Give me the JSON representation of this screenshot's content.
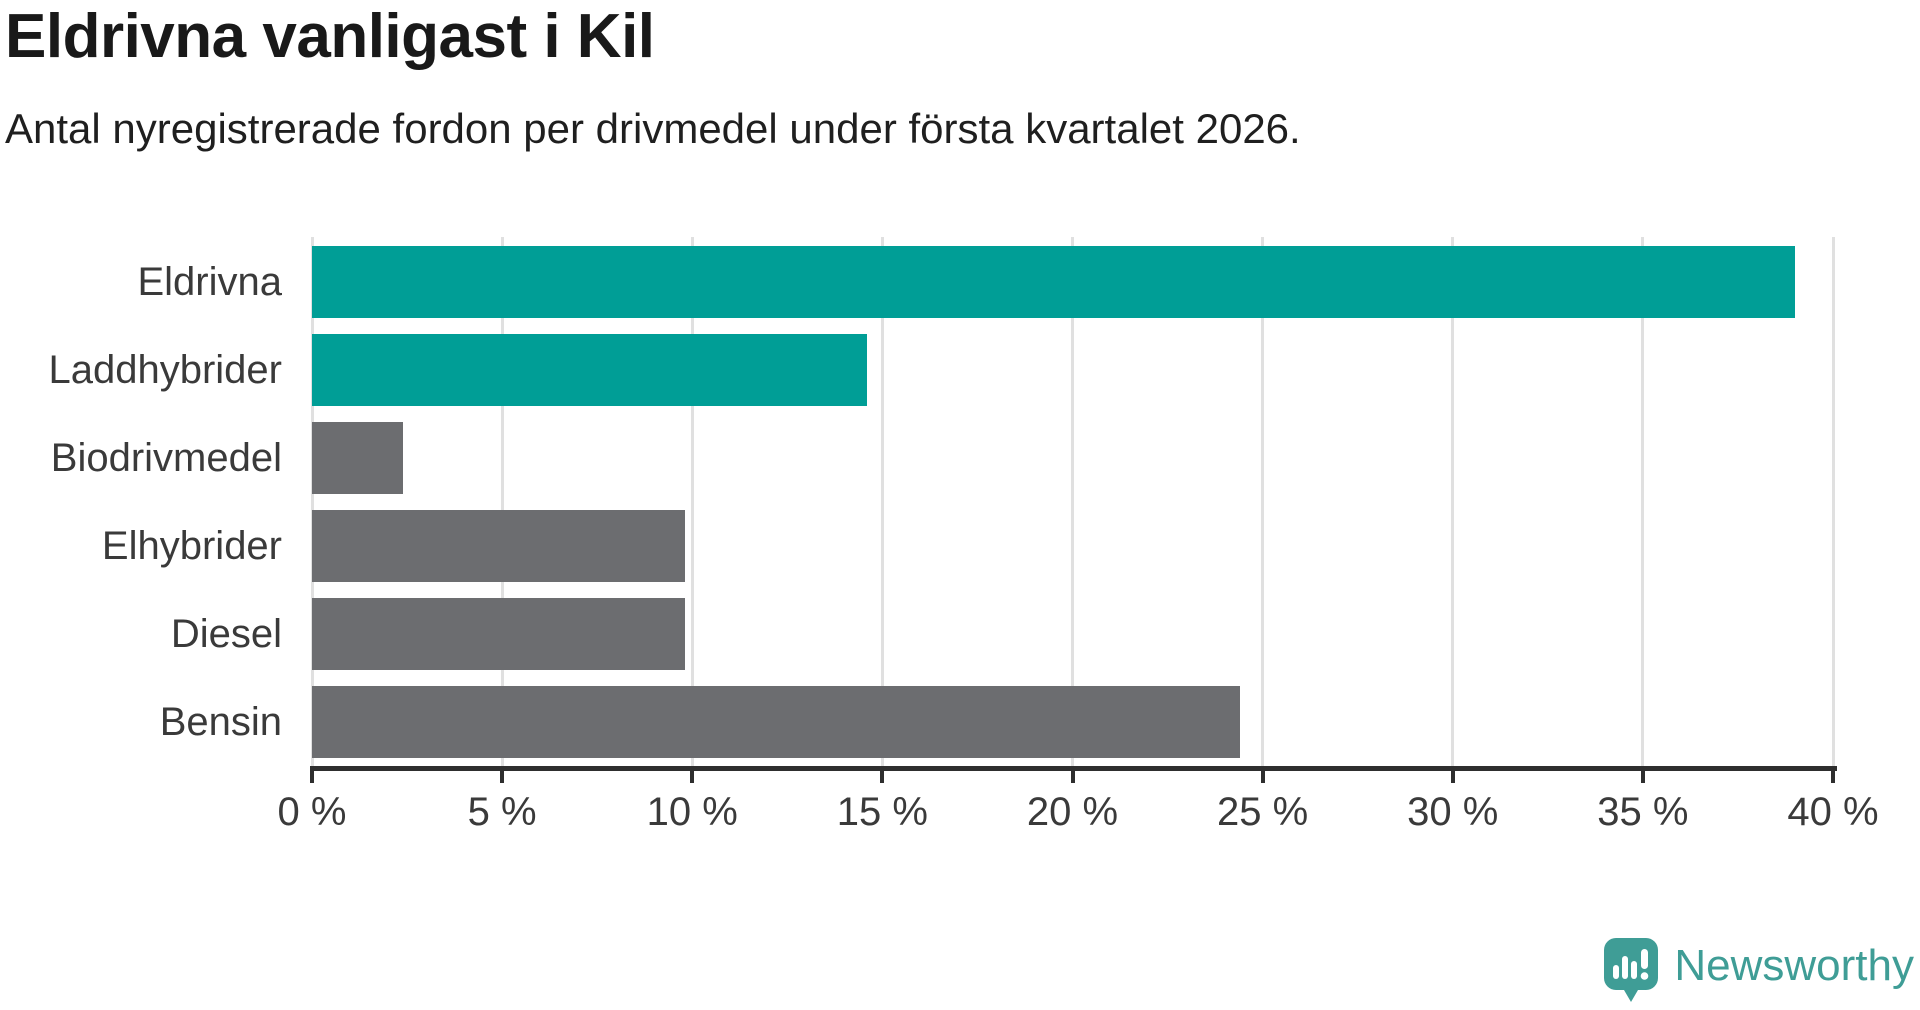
{
  "header": {
    "title": "Eldrivna vanligast i Kil",
    "subtitle": "Antal nyregistrerade fordon per drivmedel under första kvartalet 2026."
  },
  "chart_data": {
    "type": "bar",
    "orientation": "horizontal",
    "title": "Eldrivna vanligast i Kil",
    "subtitle": "Antal nyregistrerade fordon per drivmedel under första kvartalet 2026.",
    "categories": [
      "Eldrivna",
      "Laddhybrider",
      "Biodrivmedel",
      "Elhybrider",
      "Diesel",
      "Bensin"
    ],
    "values": [
      39.0,
      14.6,
      2.4,
      9.8,
      9.8,
      24.4
    ],
    "unit": "%",
    "bar_colors": [
      "#009e96",
      "#009e96",
      "#6c6d70",
      "#6c6d70",
      "#6c6d70",
      "#6c6d70"
    ],
    "xlabel": "",
    "ylabel": "",
    "xlim": [
      0,
      40
    ],
    "x_tick_step": 5,
    "x_tick_labels": [
      "0 %",
      "5 %",
      "10 %",
      "15 %",
      "20 %",
      "25 %",
      "30 %",
      "35 %",
      "40 %"
    ],
    "grid": true,
    "legend": false
  },
  "colors": {
    "bar_highlight": "#009e96",
    "bar_default": "#6c6d70",
    "grid": "#e0e0e0",
    "axis": "#2e2e2e",
    "axis_text": "#3a3a3a",
    "brand": "#3f9d96"
  },
  "footer": {
    "brand": "Newsworthy"
  }
}
